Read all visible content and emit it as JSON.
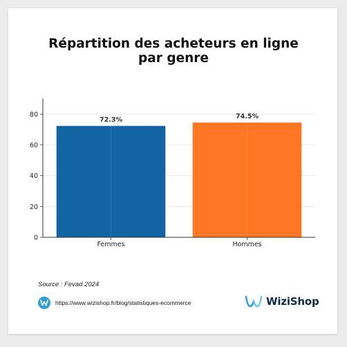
{
  "chart_data": {
    "type": "bar",
    "title": "Répartition des acheteurs en ligne par genre",
    "title_lines": [
      "Répartition des acheteurs en ligne",
      "par genre"
    ],
    "categories": [
      "Femmes",
      "Hommes"
    ],
    "values": [
      72.3,
      74.5
    ],
    "value_labels": [
      "72.3%",
      "74.5%"
    ],
    "bar_colors": [
      "#1264a3",
      "#ff7722"
    ],
    "ylim": [
      0,
      90
    ],
    "yticks": [
      0,
      20,
      40,
      60,
      80
    ],
    "xlabel": "",
    "ylabel": "",
    "grid": true
  },
  "source": "Source : Fevad 2024",
  "url": "https://www.wizishop.fr/blog/statistiques-ecommerce",
  "brand": {
    "name": "WiziShop",
    "icon": "wizishop-logo-icon",
    "color": "#0e2a47",
    "accent": "#2d9fd8"
  }
}
